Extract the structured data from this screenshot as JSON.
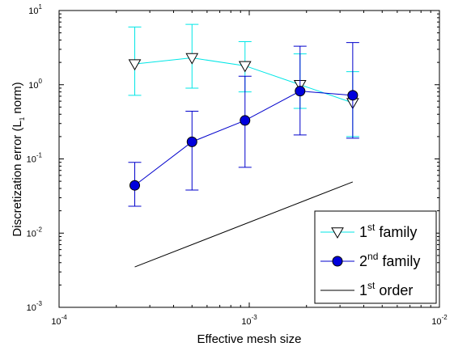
{
  "chart_data": {
    "type": "scatter",
    "xscale": "log",
    "yscale": "log",
    "xlim": [
      0.0001,
      0.01
    ],
    "ylim": [
      0.001,
      10
    ],
    "xlabel": "Effective mesh size",
    "ylabel_main": "Discretization error (L",
    "ylabel_sub": "1",
    "ylabel_end": " norm)",
    "x_ticks": [
      {
        "value": 0.0001,
        "base": "10",
        "exp": "-4"
      },
      {
        "value": 0.001,
        "base": "10",
        "exp": "-3"
      },
      {
        "value": 0.01,
        "base": "10",
        "exp": "-2"
      }
    ],
    "y_ticks": [
      {
        "value": 0.001,
        "base": "10",
        "exp": "-3"
      },
      {
        "value": 0.01,
        "base": "10",
        "exp": "-2"
      },
      {
        "value": 0.1,
        "base": "10",
        "exp": "-1"
      },
      {
        "value": 1,
        "base": "10",
        "exp": "0"
      },
      {
        "value": 10,
        "base": "10",
        "exp": "1"
      }
    ],
    "grid": false,
    "legend_position": "bottom-right",
    "series": [
      {
        "label_base": "1",
        "label_sup": "st",
        "label_rest": " family",
        "color": "#00e6e6",
        "marker": "triangle-down",
        "marker_fill": "#ffffff",
        "x": [
          0.00025,
          0.0005,
          0.00095,
          0.00185,
          0.0035
        ],
        "y": [
          1.9,
          2.3,
          1.8,
          1.0,
          0.57
        ],
        "err_low": [
          0.72,
          0.9,
          0.8,
          0.48,
          0.2
        ],
        "err_high": [
          6.0,
          6.5,
          3.8,
          2.6,
          1.5
        ]
      },
      {
        "label_base": "2",
        "label_sup": "nd",
        "label_rest": " family",
        "color": "#0000cc",
        "marker": "circle",
        "marker_fill": "#0000dd",
        "x": [
          0.00025,
          0.0005,
          0.00095,
          0.00185,
          0.0035
        ],
        "y": [
          0.044,
          0.17,
          0.33,
          0.82,
          0.72
        ],
        "err_low": [
          0.023,
          0.038,
          0.077,
          0.21,
          0.19
        ],
        "err_high": [
          0.09,
          0.44,
          1.3,
          3.3,
          3.7
        ]
      },
      {
        "label_base": "1",
        "label_sup": "st",
        "label_rest": " order",
        "color": "#000000",
        "marker": "none",
        "x": [
          0.00025,
          0.0035
        ],
        "y": [
          0.0035,
          0.049
        ]
      }
    ]
  }
}
